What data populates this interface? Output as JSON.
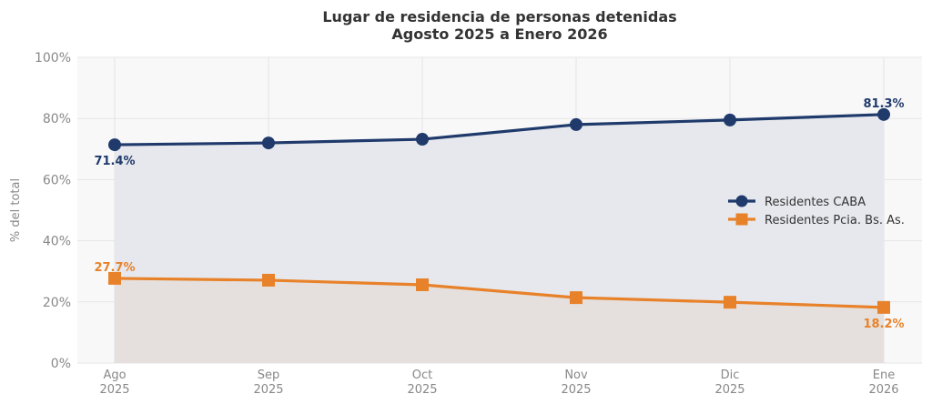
{
  "chart_data": {
    "type": "line",
    "title": "Lugar de residencia de personas detenidas",
    "subtitle": "Agosto 2025 a Enero 2026",
    "xlabel": "",
    "ylabel": "% del total",
    "ylim": [
      0,
      100
    ],
    "yticks": [
      0,
      20,
      40,
      60,
      80,
      100
    ],
    "ytick_labels": [
      "0%",
      "20%",
      "40%",
      "60%",
      "80%",
      "100%"
    ],
    "categories": [
      {
        "month": "Ago",
        "year": "2025"
      },
      {
        "month": "Sep",
        "year": "2025"
      },
      {
        "month": "Oct",
        "year": "2025"
      },
      {
        "month": "Nov",
        "year": "2025"
      },
      {
        "month": "Dic",
        "year": "2025"
      },
      {
        "month": "Ene",
        "year": "2026"
      }
    ],
    "grid": true,
    "legend_position": "right",
    "series": [
      {
        "name": "Residentes CABA",
        "color": "#1f3a6b",
        "fill": "#e6e8ed",
        "marker": "circle",
        "values": [
          71.4,
          72.0,
          73.2,
          78.0,
          79.5,
          81.3
        ],
        "annotations": [
          {
            "index": 0,
            "text": "71.4%",
            "position": "below"
          },
          {
            "index": 5,
            "text": "81.3%",
            "position": "above"
          }
        ]
      },
      {
        "name": "Residentes Pcia. Bs. As.",
        "color": "#e8822a",
        "fill": "#e5e0dd",
        "marker": "square",
        "values": [
          27.7,
          27.1,
          25.6,
          21.4,
          19.9,
          18.2
        ],
        "annotations": [
          {
            "index": 0,
            "text": "27.7%",
            "position": "above"
          },
          {
            "index": 5,
            "text": "18.2%",
            "position": "below"
          }
        ]
      }
    ]
  }
}
